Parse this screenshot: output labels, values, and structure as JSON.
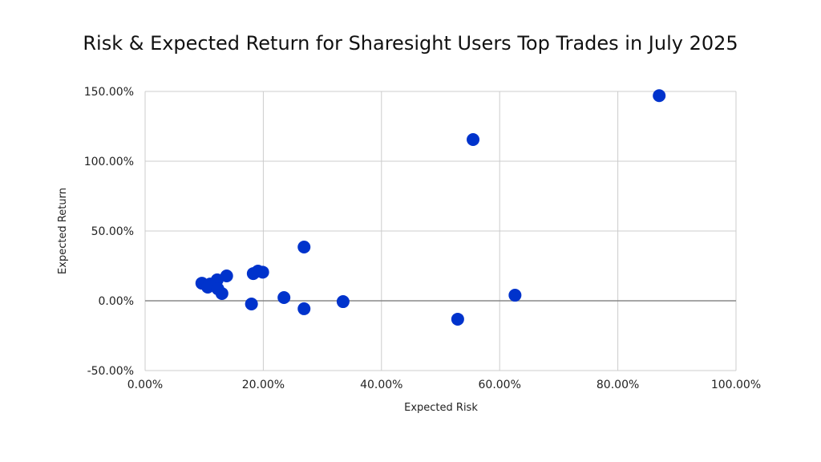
{
  "chart_data": {
    "type": "scatter",
    "title": "Risk & Expected Return for Sharesight Users Top Trades in July 2025",
    "xlabel": "Expected Risk",
    "ylabel": "Expected Return",
    "xlim": [
      0,
      100
    ],
    "ylim": [
      -50,
      150
    ],
    "xticks": [
      "0.00%",
      "20.00%",
      "40.00%",
      "60.00%",
      "80.00%",
      "100.00%"
    ],
    "yticks": [
      "-50.00%",
      "0.00%",
      "50.00%",
      "100.00%",
      "150.00%"
    ],
    "grid": true,
    "color": "#0033cc",
    "points": [
      {
        "x": 9.6,
        "y": 12.6
      },
      {
        "x": 10.6,
        "y": 9.8
      },
      {
        "x": 11.0,
        "y": 12.0
      },
      {
        "x": 12.2,
        "y": 15.0
      },
      {
        "x": 13.8,
        "y": 17.8
      },
      {
        "x": 13.0,
        "y": 5.2
      },
      {
        "x": 12.3,
        "y": 8.6
      },
      {
        "x": 18.3,
        "y": 19.5
      },
      {
        "x": 19.1,
        "y": 21.3
      },
      {
        "x": 19.9,
        "y": 20.5
      },
      {
        "x": 18.0,
        "y": -2.3
      },
      {
        "x": 26.9,
        "y": 38.5
      },
      {
        "x": 23.5,
        "y": 2.3
      },
      {
        "x": 26.9,
        "y": -5.7
      },
      {
        "x": 33.5,
        "y": -0.6
      },
      {
        "x": 52.9,
        "y": -13.2
      },
      {
        "x": 55.5,
        "y": 115.5
      },
      {
        "x": 62.6,
        "y": 4.0
      },
      {
        "x": 87.0,
        "y": 147.0
      }
    ]
  }
}
